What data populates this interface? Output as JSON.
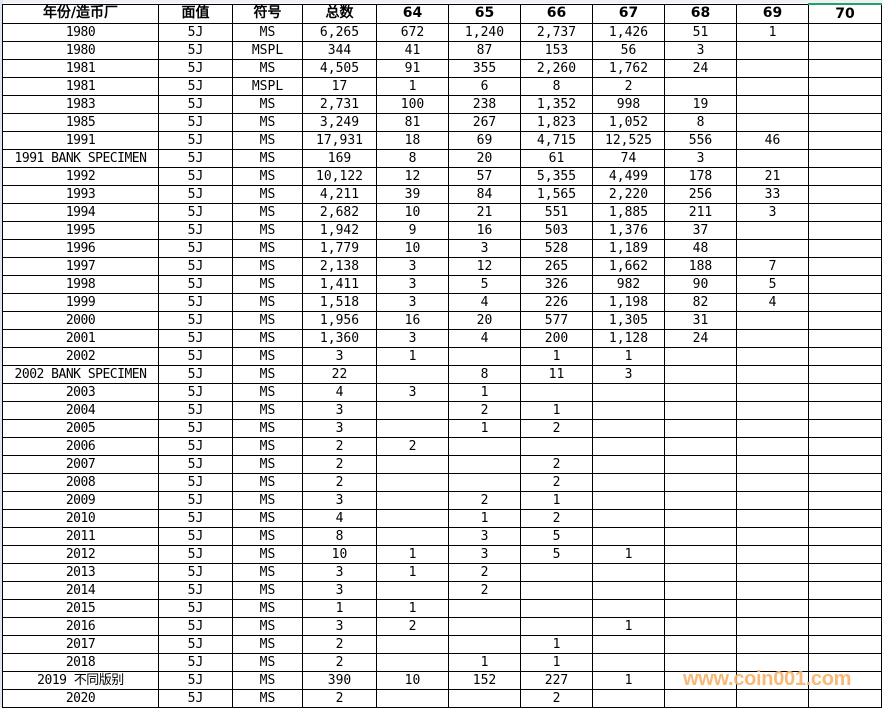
{
  "sheet": {
    "headers": [
      "年份/造币厂",
      "面值",
      "符号",
      "总数",
      "64",
      "65",
      "66",
      "67",
      "68",
      "69",
      "70"
    ],
    "selected_header": "70",
    "accent_color": "#1fa463",
    "rows": [
      [
        "1980",
        "5J",
        "MS",
        "6,265",
        "672",
        "1,240",
        "2,737",
        "1,426",
        "51",
        "1",
        ""
      ],
      [
        "1980",
        "5J",
        "MSPL",
        "344",
        "41",
        "87",
        "153",
        "56",
        "3",
        "",
        ""
      ],
      [
        "1981",
        "5J",
        "MS",
        "4,505",
        "91",
        "355",
        "2,260",
        "1,762",
        "24",
        "",
        ""
      ],
      [
        "1981",
        "5J",
        "MSPL",
        "17",
        "1",
        "6",
        "8",
        "2",
        "",
        "",
        ""
      ],
      [
        "1983",
        "5J",
        "MS",
        "2,731",
        "100",
        "238",
        "1,352",
        "998",
        "19",
        "",
        ""
      ],
      [
        "1985",
        "5J",
        "MS",
        "3,249",
        "81",
        "267",
        "1,823",
        "1,052",
        "8",
        "",
        ""
      ],
      [
        "1991",
        "5J",
        "MS",
        "17,931",
        "18",
        "69",
        "4,715",
        "12,525",
        "556",
        "46",
        ""
      ],
      [
        "1991 BANK SPECIMEN",
        "5J",
        "MS",
        "169",
        "8",
        "20",
        "61",
        "74",
        "3",
        "",
        ""
      ],
      [
        "1992",
        "5J",
        "MS",
        "10,122",
        "12",
        "57",
        "5,355",
        "4,499",
        "178",
        "21",
        ""
      ],
      [
        "1993",
        "5J",
        "MS",
        "4,211",
        "39",
        "84",
        "1,565",
        "2,220",
        "256",
        "33",
        ""
      ],
      [
        "1994",
        "5J",
        "MS",
        "2,682",
        "10",
        "21",
        "551",
        "1,885",
        "211",
        "3",
        ""
      ],
      [
        "1995",
        "5J",
        "MS",
        "1,942",
        "9",
        "16",
        "503",
        "1,376",
        "37",
        "",
        ""
      ],
      [
        "1996",
        "5J",
        "MS",
        "1,779",
        "10",
        "3",
        "528",
        "1,189",
        "48",
        "",
        ""
      ],
      [
        "1997",
        "5J",
        "MS",
        "2,138",
        "3",
        "12",
        "265",
        "1,662",
        "188",
        "7",
        ""
      ],
      [
        "1998",
        "5J",
        "MS",
        "1,411",
        "3",
        "5",
        "326",
        "982",
        "90",
        "5",
        ""
      ],
      [
        "1999",
        "5J",
        "MS",
        "1,518",
        "3",
        "4",
        "226",
        "1,198",
        "82",
        "4",
        ""
      ],
      [
        "2000",
        "5J",
        "MS",
        "1,956",
        "16",
        "20",
        "577",
        "1,305",
        "31",
        "",
        ""
      ],
      [
        "2001",
        "5J",
        "MS",
        "1,360",
        "3",
        "4",
        "200",
        "1,128",
        "24",
        "",
        ""
      ],
      [
        "2002",
        "5J",
        "MS",
        "3",
        "1",
        "",
        "1",
        "1",
        "",
        "",
        ""
      ],
      [
        "2002 BANK SPECIMEN",
        "5J",
        "MS",
        "22",
        "",
        "8",
        "11",
        "3",
        "",
        "",
        ""
      ],
      [
        "2003",
        "5J",
        "MS",
        "4",
        "3",
        "1",
        "",
        "",
        "",
        "",
        ""
      ],
      [
        "2004",
        "5J",
        "MS",
        "3",
        "",
        "2",
        "1",
        "",
        "",
        "",
        ""
      ],
      [
        "2005",
        "5J",
        "MS",
        "3",
        "",
        "1",
        "2",
        "",
        "",
        "",
        ""
      ],
      [
        "2006",
        "5J",
        "MS",
        "2",
        "2",
        "",
        "",
        "",
        "",
        "",
        ""
      ],
      [
        "2007",
        "5J",
        "MS",
        "2",
        "",
        "",
        "2",
        "",
        "",
        "",
        ""
      ],
      [
        "2008",
        "5J",
        "MS",
        "2",
        "",
        "",
        "2",
        "",
        "",
        "",
        ""
      ],
      [
        "2009",
        "5J",
        "MS",
        "3",
        "",
        "2",
        "1",
        "",
        "",
        "",
        ""
      ],
      [
        "2010",
        "5J",
        "MS",
        "4",
        "",
        "1",
        "2",
        "",
        "",
        "",
        ""
      ],
      [
        "2011",
        "5J",
        "MS",
        "8",
        "",
        "3",
        "5",
        "",
        "",
        "",
        ""
      ],
      [
        "2012",
        "5J",
        "MS",
        "10",
        "1",
        "3",
        "5",
        "1",
        "",
        "",
        ""
      ],
      [
        "2013",
        "5J",
        "MS",
        "3",
        "1",
        "2",
        "",
        "",
        "",
        "",
        ""
      ],
      [
        "2014",
        "5J",
        "MS",
        "3",
        "",
        "2",
        "",
        "",
        "",
        "",
        ""
      ],
      [
        "2015",
        "5J",
        "MS",
        "1",
        "1",
        "",
        "",
        "",
        "",
        "",
        ""
      ],
      [
        "2016",
        "5J",
        "MS",
        "3",
        "2",
        "",
        "",
        "1",
        "",
        "",
        ""
      ],
      [
        "2017",
        "5J",
        "MS",
        "2",
        "",
        "",
        "1",
        "",
        "",
        "",
        ""
      ],
      [
        "2018",
        "5J",
        "MS",
        "2",
        "",
        "1",
        "1",
        "",
        "",
        "",
        ""
      ],
      [
        "2019 不同版别",
        "5J",
        "MS",
        "390",
        "10",
        "152",
        "227",
        "1",
        "",
        "",
        ""
      ],
      [
        "2020",
        "5J",
        "MS",
        "2",
        "",
        "",
        "2",
        "",
        "",
        "",
        ""
      ]
    ]
  },
  "watermark": "www.coin001.com"
}
